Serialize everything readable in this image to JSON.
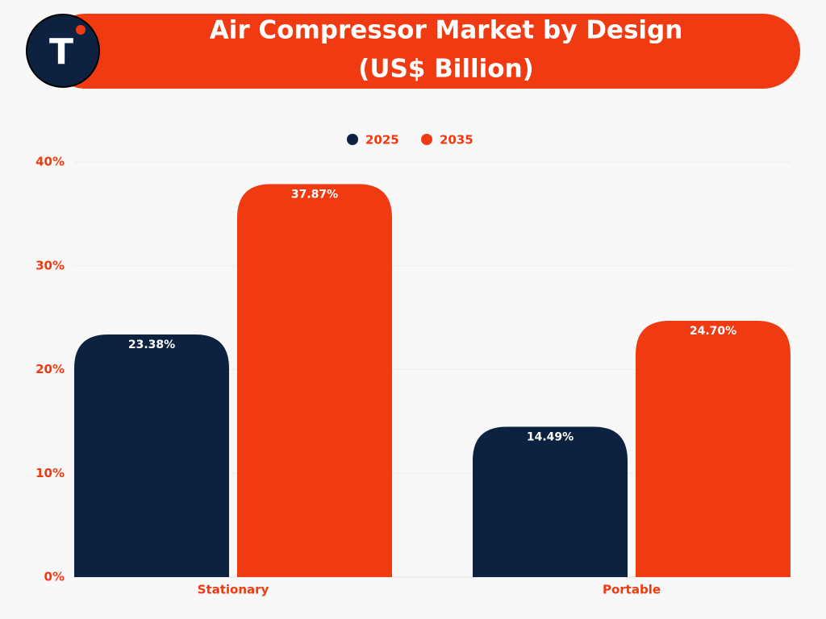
{
  "logo": "T",
  "chart_data": {
    "type": "bar",
    "title": "Air Compressor Market by Design",
    "subtitle": "(US$ Billion)",
    "categories": [
      "Stationary",
      "Portable"
    ],
    "series": [
      {
        "name": "2025",
        "color": "#0d2240",
        "values": [
          23.38,
          14.49
        ],
        "value_labels": [
          "23.38%",
          "14.49%"
        ]
      },
      {
        "name": "2035",
        "color": "#f03a12",
        "values": [
          37.87,
          24.7
        ],
        "value_labels": [
          "37.87%",
          "24.70%"
        ]
      }
    ],
    "ylim": [
      0,
      40
    ],
    "yticks": [
      {
        "value": 0,
        "label": "0%"
      },
      {
        "value": 10,
        "label": "10%"
      },
      {
        "value": 20,
        "label": "20%"
      },
      {
        "value": 30,
        "label": "30%"
      },
      {
        "value": 40,
        "label": "40%"
      }
    ],
    "grid": true,
    "legend": "top"
  }
}
